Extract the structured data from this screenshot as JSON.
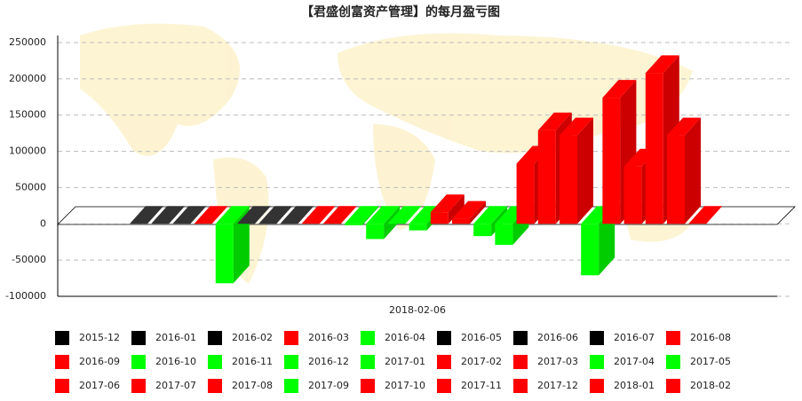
{
  "chart_data": {
    "type": "bar3d",
    "title": "【君盛创富资产管理】的每月盈亏图",
    "x_label": "2018-02-06",
    "categories": [
      "2015-12",
      "2016-01",
      "2016-02",
      "2016-03",
      "2016-04",
      "2016-05",
      "2016-06",
      "2016-07",
      "2016-08",
      "2016-09",
      "2016-10",
      "2016-11",
      "2016-12",
      "2017-01",
      "2017-02",
      "2017-03",
      "2017-04",
      "2017-05",
      "2017-06",
      "2017-07",
      "2017-08",
      "2017-09",
      "2017-10",
      "2017-11",
      "2017-12",
      "2018-01",
      "2018-02"
    ],
    "values": [
      0,
      0,
      0,
      0,
      -82000,
      0,
      0,
      0,
      0,
      0,
      -2000,
      -21000,
      0,
      -9000,
      16000,
      7000,
      -17000,
      -29000,
      83000,
      129000,
      122000,
      -71000,
      174000,
      79000,
      208000,
      122000,
      0
    ],
    "colors": [
      "#000000",
      "#000000",
      "#000000",
      "#ff0000",
      "#00ff00",
      "#000000",
      "#000000",
      "#000000",
      "#ff0000",
      "#ff0000",
      "#00ff00",
      "#00ff00",
      "#00ff00",
      "#00ff00",
      "#ff0000",
      "#ff0000",
      "#00ff00",
      "#00ff00",
      "#ff0000",
      "#ff0000",
      "#ff0000",
      "#00ff00",
      "#ff0000",
      "#ff0000",
      "#ff0000",
      "#ff0000",
      "#ff0000"
    ],
    "ylim": [
      -100000,
      250000
    ],
    "yticks": [
      -100000,
      -50000,
      0,
      50000,
      100000,
      150000,
      200000,
      250000
    ],
    "grid": true
  }
}
